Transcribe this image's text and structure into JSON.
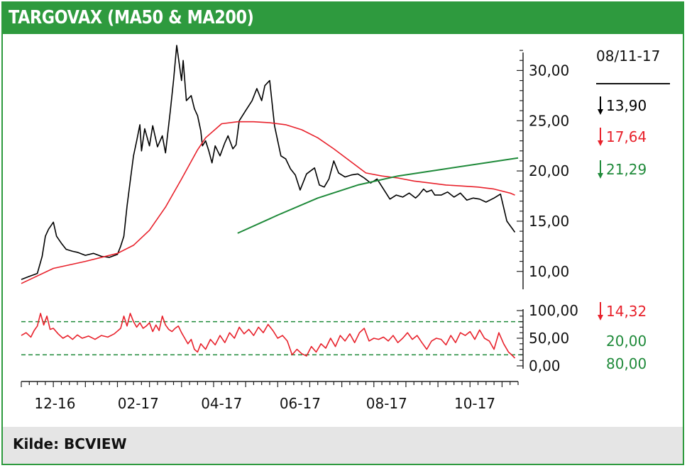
{
  "header": {
    "title": "TARGOVAX (MA50 & MA200)"
  },
  "footer": {
    "source": "Kilde: BCVIEW"
  },
  "colors": {
    "frame": "#2e9a3e",
    "price": "#000000",
    "ma50": "#e8212b",
    "ma200": "#1f8a3a",
    "footer_bg": "#e5e5e5"
  },
  "chart_data": [
    {
      "type": "line",
      "title": "TARGOVAX (MA50 & MA200)",
      "x_tick_labels": [
        "12-16",
        "02-17",
        "04-17",
        "06-17",
        "08-17",
        "10-17"
      ],
      "y_tick_labels": [
        "30,00",
        "25,00",
        "20,00",
        "15,00",
        "10,00"
      ],
      "ylim": [
        8.5,
        32.5
      ],
      "grid": false,
      "legend": {
        "date": "08/11-17",
        "items": [
          {
            "label": "13,90",
            "color": "#000000",
            "direction": "down"
          },
          {
            "label": "17,64",
            "color": "#e8212b",
            "direction": "down"
          },
          {
            "label": "21,29",
            "color": "#1f8a3a",
            "direction": "down"
          }
        ]
      },
      "series": [
        {
          "key": "price",
          "x": [
            0,
            5,
            10,
            13,
            15,
            17,
            20,
            22,
            25,
            28,
            32,
            35,
            40,
            45,
            50,
            55,
            60,
            62,
            64,
            66,
            68,
            70,
            72,
            74,
            75,
            77,
            80,
            82,
            85,
            88,
            90,
            93,
            95,
            97,
            100,
            101,
            103,
            106,
            108,
            110,
            112,
            113,
            115,
            117,
            119,
            121,
            124,
            127,
            129,
            132,
            134,
            136,
            140,
            144,
            147,
            150,
            152,
            155,
            158,
            162,
            165,
            168,
            171,
            174,
            178,
            183,
            186,
            189,
            192,
            195,
            198,
            202,
            206,
            210,
            214,
            218,
            222,
            226,
            230,
            234,
            238,
            242,
            246,
            248,
            251,
            253,
            256,
            258,
            262,
            266,
            270,
            274,
            278,
            282,
            286,
            290,
            295,
            299,
            303,
            308
          ],
          "y": [
            9.2,
            9.5,
            9.8,
            11.5,
            13.5,
            14.2,
            14.9,
            13.5,
            12.8,
            12.2,
            12.0,
            11.9,
            11.6,
            11.8,
            11.5,
            11.4,
            11.7,
            12.5,
            13.5,
            16.5,
            19.0,
            21.5,
            23.0,
            24.6,
            22.0,
            24.2,
            22.5,
            24.5,
            22.4,
            23.5,
            21.8,
            26.0,
            29.0,
            32.5,
            29.0,
            31.0,
            27.0,
            27.5,
            26.2,
            25.5,
            24.0,
            22.5,
            23.0,
            22.0,
            20.8,
            22.5,
            21.5,
            22.8,
            23.5,
            22.2,
            22.6,
            25.0,
            26.0,
            27.0,
            28.2,
            27.0,
            28.5,
            29.0,
            24.5,
            21.5,
            21.2,
            20.2,
            19.6,
            18.1,
            19.7,
            20.3,
            18.6,
            18.4,
            19.2,
            21.0,
            19.8,
            19.4,
            19.6,
            19.7,
            19.3,
            18.8,
            19.2,
            18.2,
            17.2,
            17.6,
            17.4,
            17.8,
            17.3,
            17.6,
            18.2,
            17.9,
            18.1,
            17.6,
            17.6,
            17.9,
            17.4,
            17.8,
            17.1,
            17.3,
            17.2,
            16.9,
            17.3,
            17.7,
            15.0,
            13.9
          ]
        },
        {
          "key": "ma50",
          "x": [
            0,
            20,
            40,
            60,
            70,
            80,
            90,
            100,
            110,
            115,
            125,
            135,
            145,
            155,
            165,
            175,
            185,
            195,
            205,
            215,
            225,
            235,
            245,
            255,
            265,
            275,
            285,
            295,
            305,
            308
          ],
          "y": [
            8.8,
            10.3,
            11.0,
            11.8,
            12.6,
            14.1,
            16.4,
            19.2,
            22.1,
            23.3,
            24.7,
            24.9,
            24.9,
            24.8,
            24.6,
            24.1,
            23.3,
            22.2,
            21.0,
            19.8,
            19.5,
            19.3,
            19.0,
            18.8,
            18.6,
            18.5,
            18.4,
            18.2,
            17.8,
            17.6
          ]
        },
        {
          "key": "ma200",
          "x": [
            135,
            160,
            185,
            210,
            235,
            260,
            285,
            310
          ],
          "y": [
            13.8,
            15.6,
            17.3,
            18.6,
            19.5,
            20.1,
            20.7,
            21.3
          ]
        }
      ]
    },
    {
      "type": "line",
      "y_tick_labels": [
        "100,00",
        "50,00",
        "0,00"
      ],
      "ylim": [
        0,
        100
      ],
      "grid": false,
      "reference_lines": [
        {
          "value": 20,
          "label": "20,00",
          "color": "#1f8a3a"
        },
        {
          "value": 80,
          "label": "80,00",
          "color": "#1f8a3a"
        }
      ],
      "legend": {
        "items": [
          {
            "label": "14,32",
            "color": "#e8212b",
            "direction": "down"
          }
        ]
      },
      "series": [
        {
          "key": "oscillator",
          "x": [
            0,
            3,
            6,
            8,
            10,
            12,
            14,
            16,
            18,
            20,
            23,
            26,
            29,
            32,
            35,
            38,
            42,
            46,
            50,
            54,
            58,
            62,
            64,
            66,
            68,
            70,
            72,
            74,
            76,
            78,
            80,
            82,
            84,
            86,
            88,
            90,
            92,
            94,
            96,
            98,
            100,
            102,
            104,
            106,
            108,
            110,
            112,
            115,
            118,
            121,
            124,
            127,
            130,
            133,
            136,
            139,
            142,
            145,
            148,
            151,
            154,
            157,
            160,
            163,
            166,
            169,
            172,
            175,
            178,
            181,
            184,
            187,
            190,
            193,
            196,
            199,
            202,
            205,
            208,
            211,
            214,
            217,
            220,
            223,
            226,
            229,
            232,
            235,
            238,
            241,
            244,
            247,
            250,
            253,
            256,
            259,
            262,
            265,
            268,
            271,
            274,
            277,
            280,
            283,
            286,
            289,
            292,
            295,
            298,
            301,
            304,
            306,
            308
          ],
          "y": [
            55,
            60,
            52,
            64,
            72,
            95,
            74,
            90,
            66,
            68,
            58,
            50,
            55,
            48,
            56,
            50,
            54,
            48,
            55,
            52,
            58,
            68,
            90,
            72,
            95,
            80,
            70,
            78,
            68,
            72,
            78,
            62,
            74,
            64,
            90,
            74,
            66,
            62,
            68,
            72,
            60,
            50,
            40,
            48,
            30,
            25,
            40,
            30,
            48,
            38,
            55,
            42,
            60,
            50,
            70,
            58,
            66,
            55,
            70,
            60,
            75,
            64,
            50,
            55,
            45,
            20,
            30,
            22,
            18,
            35,
            25,
            40,
            32,
            50,
            35,
            55,
            45,
            58,
            42,
            60,
            68,
            45,
            50,
            48,
            52,
            45,
            55,
            42,
            50,
            60,
            48,
            55,
            42,
            30,
            45,
            50,
            48,
            38,
            55,
            42,
            60,
            55,
            62,
            48,
            65,
            50,
            45,
            30,
            60,
            40,
            25,
            20,
            14
          ]
        }
      ]
    }
  ]
}
